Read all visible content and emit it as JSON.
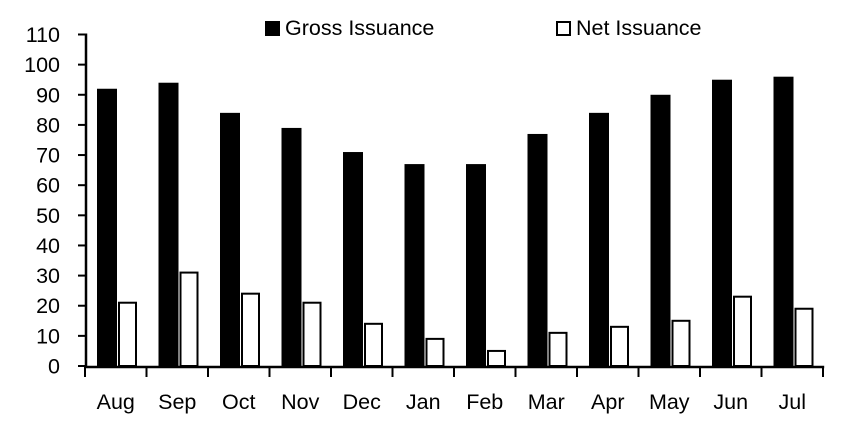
{
  "chart_data": {
    "type": "bar",
    "categories": [
      "Aug",
      "Sep",
      "Oct",
      "Nov",
      "Dec",
      "Jan",
      "Feb",
      "Mar",
      "Apr",
      "May",
      "Jun",
      "Jul"
    ],
    "series": [
      {
        "name": "Gross Issuance",
        "values": [
          92,
          94,
          84,
          79,
          71,
          67,
          67,
          77,
          84,
          90,
          95,
          96
        ],
        "fill": "#000000",
        "stroke": "#000000"
      },
      {
        "name": "Net Issuance",
        "values": [
          21,
          31,
          24,
          21,
          14,
          9,
          5,
          11,
          13,
          15,
          23,
          19
        ],
        "fill": "#ffffff",
        "stroke": "#000000"
      }
    ],
    "ylim": [
      0,
      110
    ],
    "yticks": [
      0,
      10,
      20,
      30,
      40,
      50,
      60,
      70,
      80,
      90,
      100,
      110
    ],
    "grid": false,
    "legend_position": "top",
    "background": "#ffffff",
    "text_color": "#000000"
  }
}
